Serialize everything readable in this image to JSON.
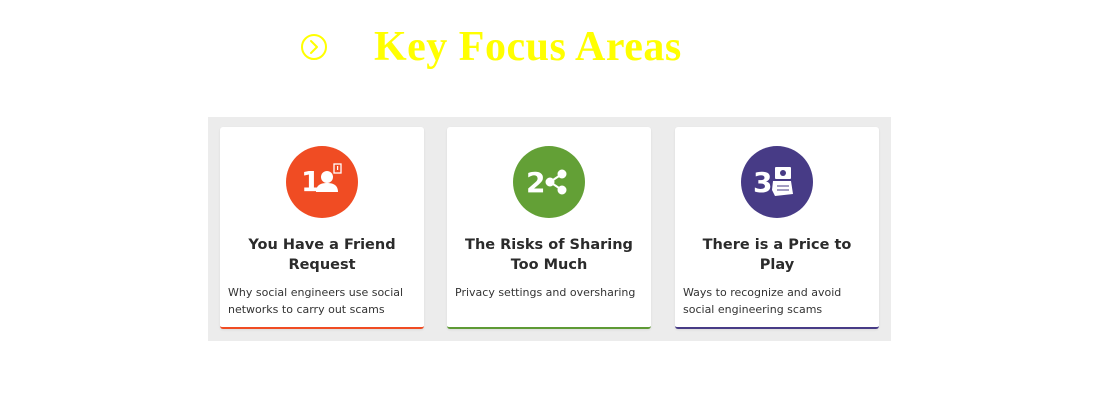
{
  "header": {
    "icon": "chevron-circle-right-icon",
    "title": "Key Focus Areas",
    "title_color": "#ffff00"
  },
  "cards": [
    {
      "number": "1",
      "icon": "user-icon",
      "accent": "#f04c23",
      "title": "You Have a Friend Request",
      "description": "Why social engineers use social networks to carry out scams"
    },
    {
      "number": "2",
      "icon": "share-icon",
      "accent": "#63a036",
      "title": "The Risks of Sharing Too Much",
      "description": "Privacy settings and oversharing"
    },
    {
      "number": "3",
      "icon": "hand-money-icon",
      "accent": "#473b86",
      "title": "There is a Price to Play",
      "description": "Ways to recognize and avoid social engineering scams"
    }
  ]
}
